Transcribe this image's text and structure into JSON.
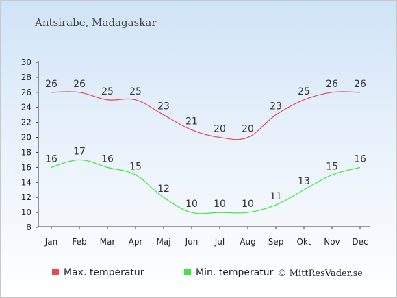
{
  "chart_data": {
    "type": "line",
    "title": "Antsirabe, Madagaskar",
    "categories": [
      "Jan",
      "Feb",
      "Mar",
      "Apr",
      "Maj",
      "Jun",
      "Jul",
      "Aug",
      "Sep",
      "Okt",
      "Nov",
      "Dec"
    ],
    "series": [
      {
        "name": "Max. temperatur",
        "color": "#e8484e",
        "values": [
          26,
          26,
          25,
          25,
          23,
          21,
          20,
          20,
          23,
          25,
          26,
          26
        ]
      },
      {
        "name": "Min. temperatur",
        "color": "#3ee83a",
        "values": [
          16,
          17,
          16,
          15,
          12,
          10,
          10,
          10,
          11,
          13,
          15,
          16
        ]
      }
    ],
    "ylim": [
      8,
      30
    ],
    "yticks": [
      8,
      10,
      12,
      14,
      16,
      18,
      20,
      22,
      24,
      26,
      28,
      30
    ],
    "grid": false,
    "legend": "bottom-left",
    "credit": "© MittResVader.se"
  }
}
